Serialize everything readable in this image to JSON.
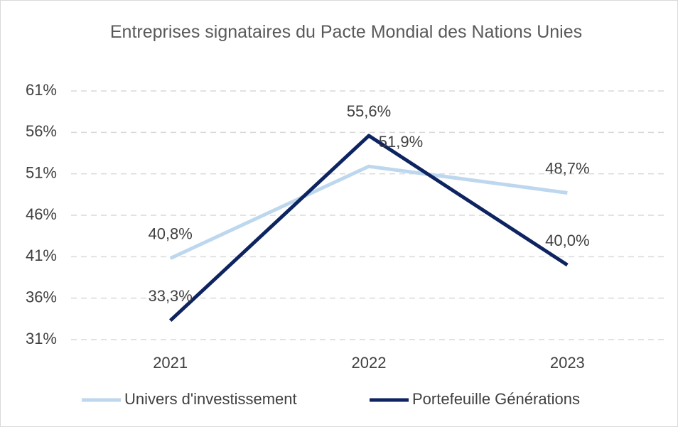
{
  "chart_data": {
    "type": "line",
    "title": "Entreprises signataires du Pacte Mondial des Nations Unies",
    "categories": [
      "2021",
      "2022",
      "2023"
    ],
    "series": [
      {
        "name": "Univers d'investissement",
        "color": "#bdd7ee",
        "values": [
          40.8,
          51.9,
          48.7
        ],
        "value_labels": [
          "40,8%",
          "51,9%",
          "48,7%"
        ]
      },
      {
        "name": "Portefeuille Générations",
        "color": "#0d2461",
        "values": [
          33.3,
          55.6,
          40.0
        ],
        "value_labels": [
          "33,3%",
          "55,6%",
          "40,0%"
        ]
      }
    ],
    "ylim": [
      31,
      61
    ],
    "yticks": [
      {
        "value": 31,
        "label": "31%"
      },
      {
        "value": 36,
        "label": "36%"
      },
      {
        "value": 41,
        "label": "41%"
      },
      {
        "value": 46,
        "label": "46%"
      },
      {
        "value": 51,
        "label": "51%"
      },
      {
        "value": 56,
        "label": "56%"
      },
      {
        "value": 61,
        "label": "61%"
      }
    ],
    "grid": true,
    "legend": "bottom"
  }
}
